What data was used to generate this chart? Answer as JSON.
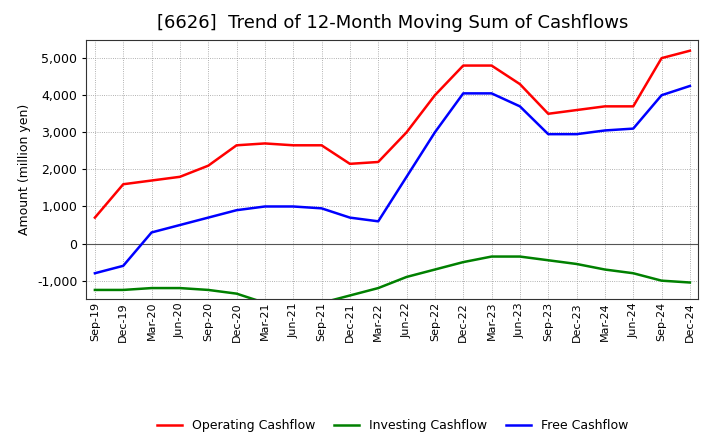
{
  "title": "[6626]  Trend of 12-Month Moving Sum of Cashflows",
  "ylabel": "Amount (million yen)",
  "xlabels": [
    "Sep-19",
    "Dec-19",
    "Mar-20",
    "Jun-20",
    "Sep-20",
    "Dec-20",
    "Mar-21",
    "Jun-21",
    "Sep-21",
    "Dec-21",
    "Mar-22",
    "Jun-22",
    "Sep-22",
    "Dec-22",
    "Mar-23",
    "Jun-23",
    "Sep-23",
    "Dec-23",
    "Mar-24",
    "Jun-24",
    "Sep-24",
    "Dec-24"
  ],
  "operating": [
    700,
    1600,
    1700,
    1800,
    2100,
    2650,
    2700,
    2650,
    2650,
    2150,
    2200,
    3000,
    4000,
    4800,
    4800,
    4300,
    3500,
    3600,
    3700,
    3700,
    5000,
    5200
  ],
  "investing": [
    -1250,
    -1250,
    -1200,
    -1200,
    -1250,
    -1350,
    -1600,
    -1700,
    -1600,
    -1400,
    -1200,
    -900,
    -700,
    -500,
    -350,
    -350,
    -450,
    -550,
    -700,
    -800,
    -1000,
    -1050
  ],
  "free": [
    -800,
    -600,
    300,
    500,
    700,
    900,
    1000,
    1000,
    950,
    700,
    600,
    1800,
    3000,
    4050,
    4050,
    3700,
    2950,
    2950,
    3050,
    3100,
    4000,
    4250
  ],
  "operating_color": "#FF0000",
  "investing_color": "#008000",
  "free_color": "#0000FF",
  "ylim": [
    -1500,
    5500
  ],
  "yticks": [
    -1000,
    0,
    1000,
    2000,
    3000,
    4000,
    5000
  ],
  "background_color": "#FFFFFF",
  "grid_color": "#999999",
  "line_width": 1.8,
  "title_fontsize": 13,
  "axis_fontsize": 9,
  "tick_fontsize": 8,
  "legend_fontsize": 9
}
